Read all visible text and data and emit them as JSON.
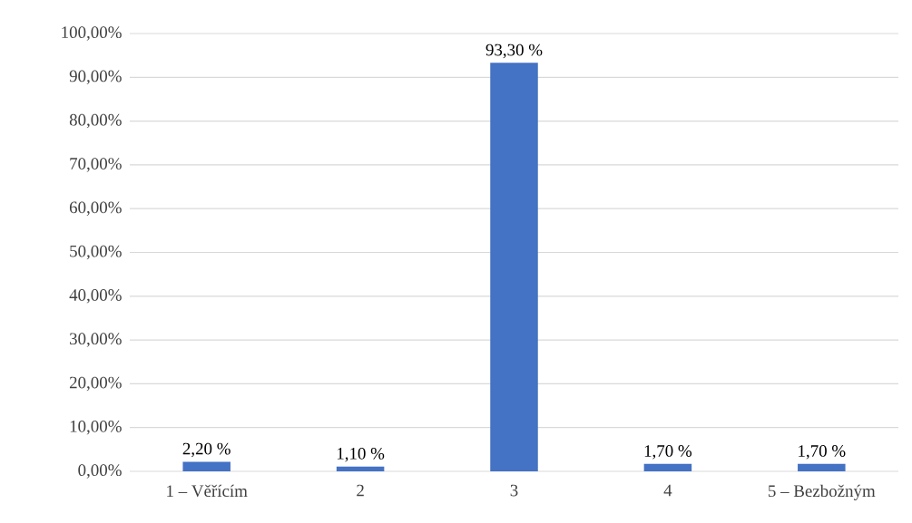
{
  "chart_data": {
    "type": "bar",
    "categories": [
      "1 – Věřícím",
      "2",
      "3",
      "4",
      "5 – Bezbožným"
    ],
    "values": [
      2.2,
      1.1,
      93.3,
      1.7,
      1.7
    ],
    "value_labels": [
      "2,20 %",
      "1,10 %",
      "93,30 %",
      "1,70 %",
      "1,70 %"
    ],
    "color": "#4472c4",
    "ylim": [
      0,
      100
    ],
    "yticks": [
      {
        "value": 0,
        "label": "0,00%"
      },
      {
        "value": 10,
        "label": "10,00%"
      },
      {
        "value": 20,
        "label": "20,00%"
      },
      {
        "value": 30,
        "label": "30,00%"
      },
      {
        "value": 40,
        "label": "40,00%"
      },
      {
        "value": 50,
        "label": "50,00%"
      },
      {
        "value": 60,
        "label": "60,00%"
      },
      {
        "value": 70,
        "label": "70,00%"
      },
      {
        "value": 80,
        "label": "80,00%"
      },
      {
        "value": 90,
        "label": "90,00%"
      },
      {
        "value": 100,
        "label": "100,00%"
      }
    ],
    "grid": "y"
  }
}
